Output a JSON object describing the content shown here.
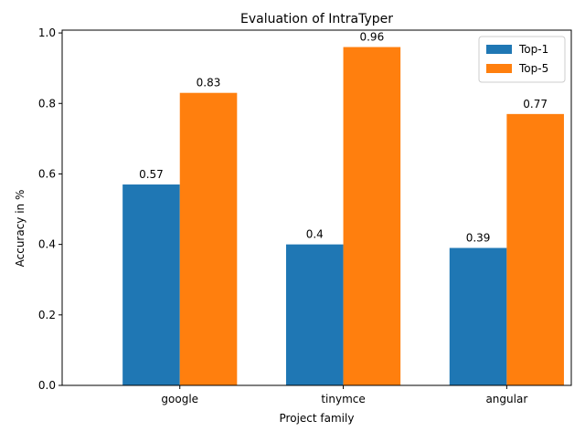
{
  "chart_data": {
    "type": "bar",
    "title": "Evaluation of IntraTyper",
    "xlabel": "Project family",
    "ylabel": "Accuracy in %",
    "categories": [
      "google",
      "tinymce",
      "angular"
    ],
    "series": [
      {
        "name": "Top-1",
        "values": [
          0.57,
          0.4,
          0.39
        ],
        "color": "#1f77b4"
      },
      {
        "name": "Top-5",
        "values": [
          0.83,
          0.96,
          0.77
        ],
        "color": "#ff7f0e"
      }
    ],
    "data_labels": [
      [
        "0.57",
        "0.4",
        "0.39"
      ],
      [
        "0.83",
        "0.96",
        "0.77"
      ]
    ],
    "ylim": [
      0,
      1.008
    ],
    "yticks": [
      0.0,
      0.2,
      0.4,
      0.6,
      0.8,
      1.0
    ],
    "ytick_labels": [
      "0.0",
      "0.2",
      "0.4",
      "0.6",
      "0.8",
      "1.0"
    ],
    "grid": false,
    "legend": "top-right"
  }
}
